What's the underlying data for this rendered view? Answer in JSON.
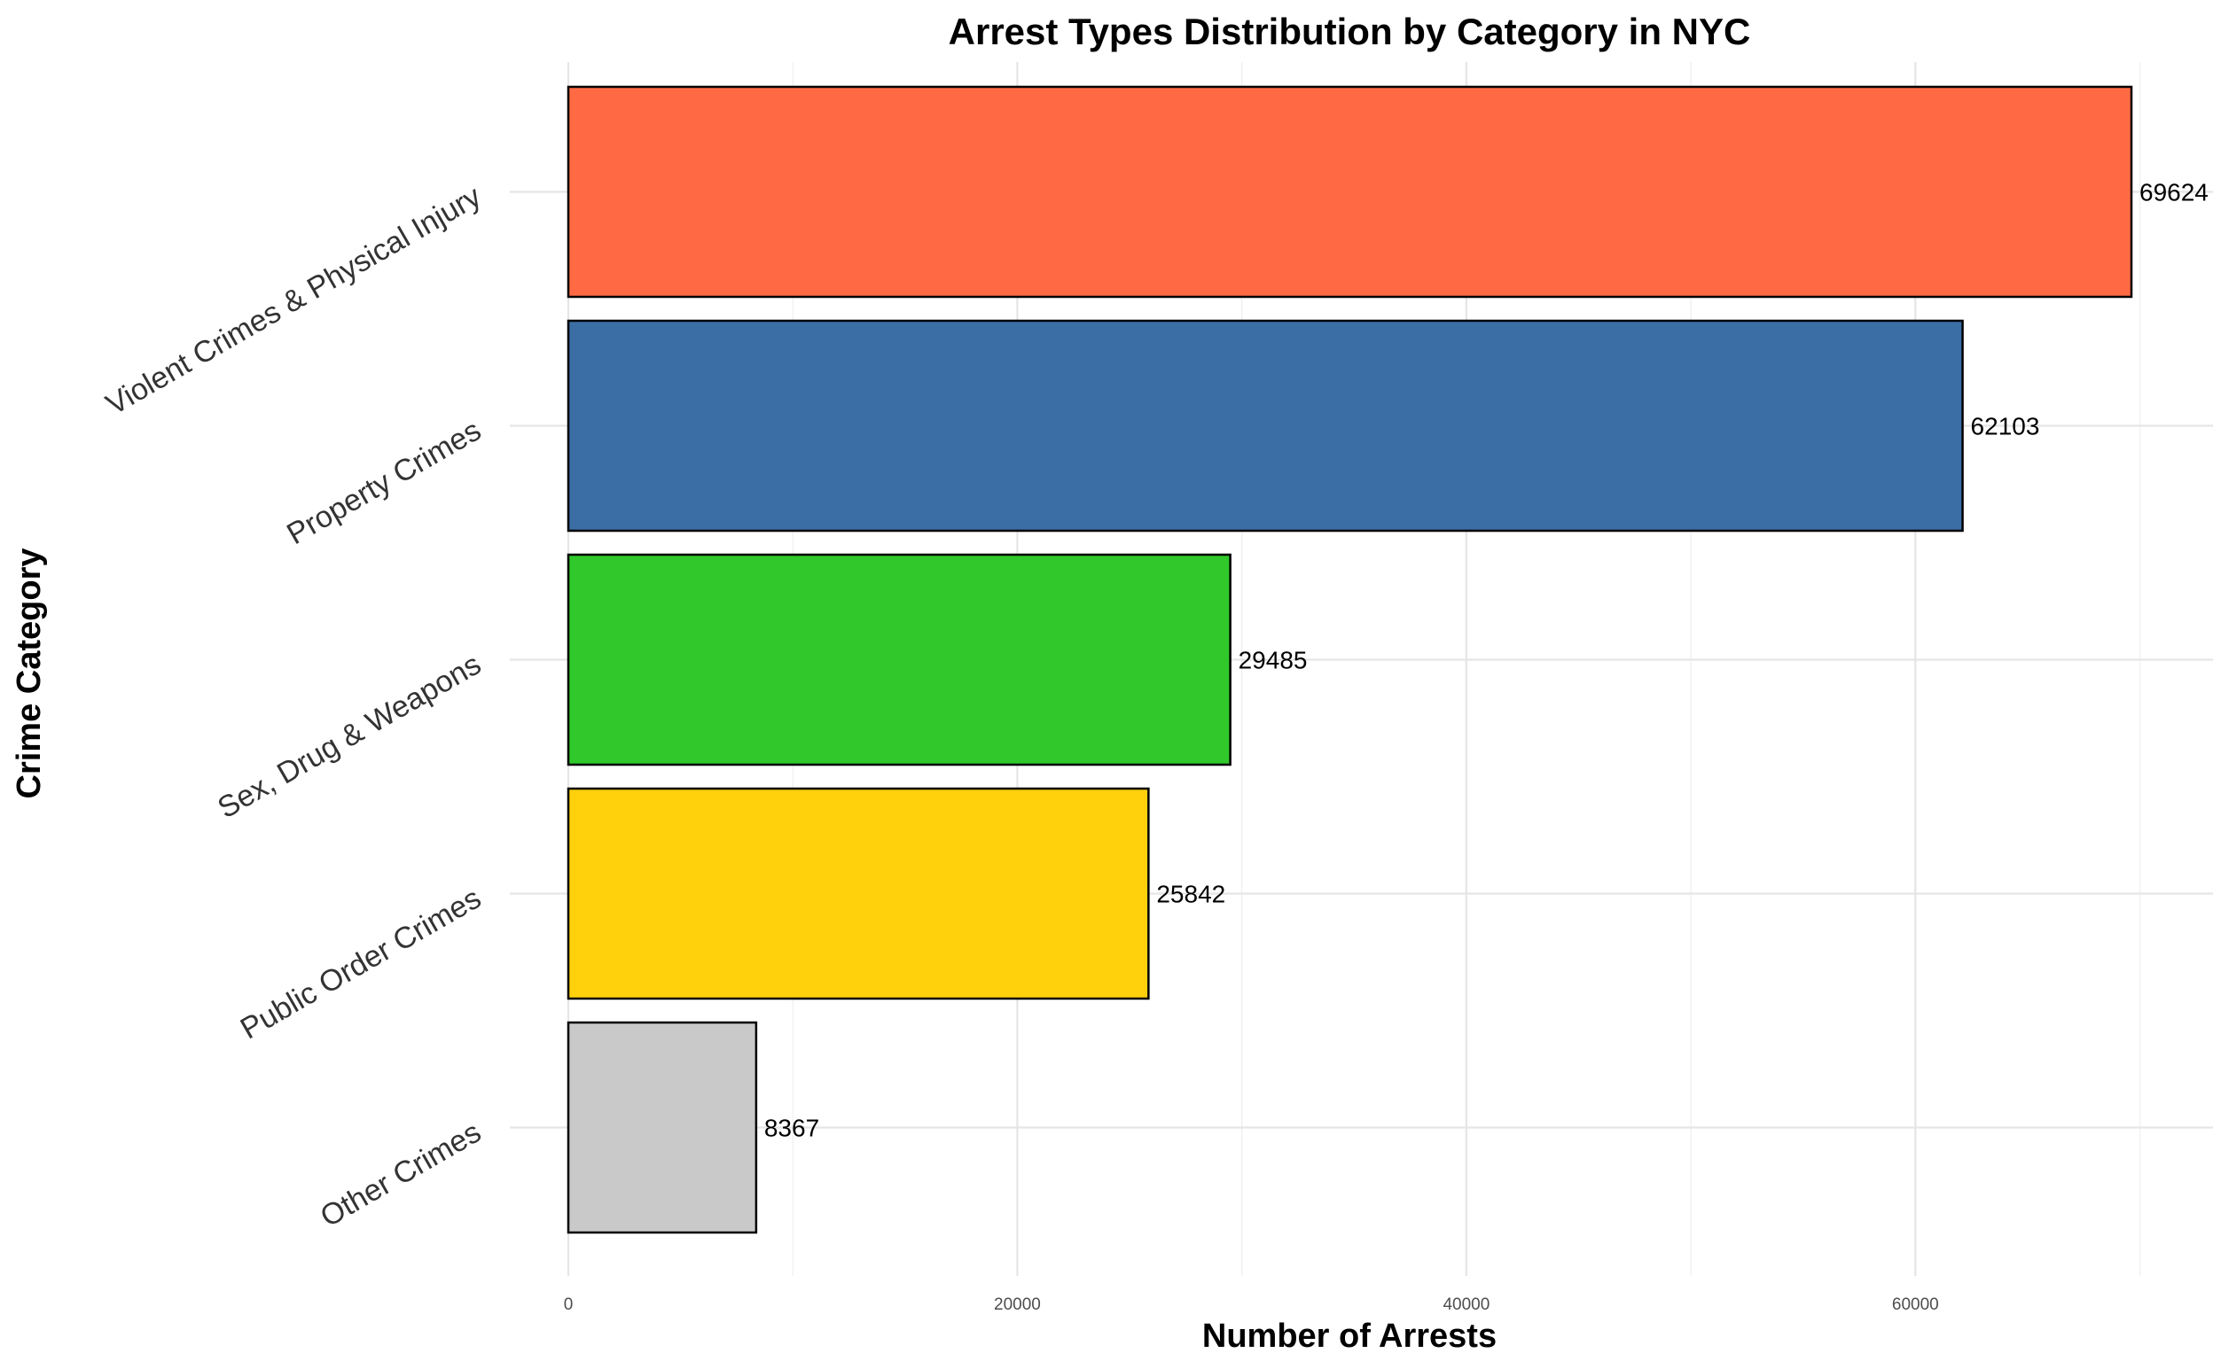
{
  "chart_data": {
    "type": "bar",
    "orientation": "horizontal",
    "title": "Arrest Types Distribution by Category in NYC",
    "xlabel": "Number of Arrests",
    "ylabel": "Crime Category",
    "categories": [
      "Violent Crimes & Physical Injury",
      "Property Crimes",
      "Sex, Drug & Weapons",
      "Public Order Crimes",
      "Other Crimes"
    ],
    "values": [
      69624,
      62103,
      29485,
      25842,
      8367
    ],
    "value_labels": [
      "69624",
      "62103",
      "29485",
      "25842",
      "8367"
    ],
    "colors": [
      "#FF6A44",
      "#3A6EA5",
      "#30C82A",
      "#FFD00C",
      "#C9C9C9"
    ],
    "bar_edge_color": "#000000",
    "x_ticks": [
      0,
      20000,
      40000,
      60000
    ],
    "x_tick_labels": [
      "0",
      "20000",
      "40000",
      "60000"
    ],
    "xlim": [
      0,
      73000
    ],
    "grid": true,
    "legend": "none"
  }
}
